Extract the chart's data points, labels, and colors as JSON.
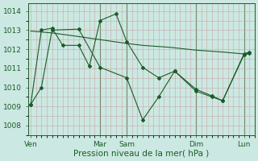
{
  "background_color": "#cce8e2",
  "grid_color_minor": "#b8d4ce",
  "grid_color_pink": "#c8a8a8",
  "line_color": "#1a5c28",
  "xlabel": "Pression niveau de la mer( hPa )",
  "xlabel_fontsize": 7.5,
  "tick_fontsize": 6.5,
  "ylim": [
    1007.5,
    1014.4
  ],
  "yticks": [
    1008,
    1009,
    1010,
    1011,
    1012,
    1013,
    1014
  ],
  "xlim": [
    -0.5,
    42
  ],
  "xtick_positions": [
    0,
    13,
    18,
    21,
    31,
    40
  ],
  "xtick_labels": [
    "Ven",
    "Mar",
    "Sam",
    "",
    "Dim",
    "Lun"
  ],
  "vline_positions": [
    13,
    18,
    31,
    40
  ],
  "series_smooth_x": [
    0,
    4,
    8,
    13,
    18,
    21,
    26,
    31,
    36,
    40,
    41
  ],
  "series_smooth_y": [
    1012.95,
    1012.85,
    1012.7,
    1012.5,
    1012.3,
    1012.2,
    1012.1,
    1011.95,
    1011.85,
    1011.75,
    1011.75
  ],
  "series_jagged1_x": [
    0,
    2,
    4,
    9,
    13,
    18,
    21,
    24,
    27,
    31,
    34,
    36,
    40,
    41
  ],
  "series_jagged1_y": [
    1009.1,
    1010.0,
    1013.0,
    1013.05,
    1011.05,
    1010.5,
    1008.3,
    1009.5,
    1010.85,
    1009.9,
    1009.55,
    1009.3,
    1011.7,
    1011.8
  ],
  "series_jagged2_x": [
    0,
    2,
    4,
    6,
    9,
    11,
    13,
    16,
    18,
    21,
    24,
    27,
    31,
    34,
    36,
    40,
    41
  ],
  "series_jagged2_y": [
    1009.1,
    1013.0,
    1013.1,
    1012.2,
    1012.2,
    1011.1,
    1013.5,
    1013.85,
    1012.4,
    1011.05,
    1010.5,
    1010.85,
    1009.8,
    1009.5,
    1009.3,
    1011.75,
    1011.85
  ]
}
